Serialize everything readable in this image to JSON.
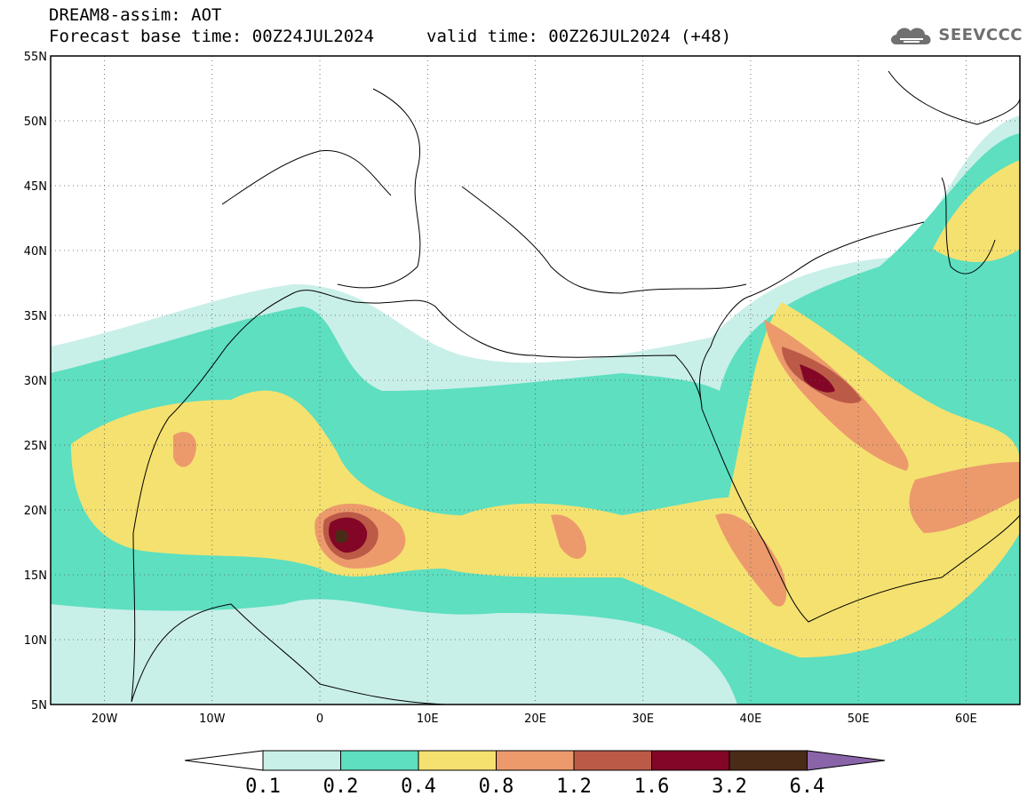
{
  "header": {
    "line1": "DREAM8-assim: AOT",
    "line2": "Forecast base time: 00Z24JUL2024",
    "line3": "valid time: 00Z26JUL2024 (+48)"
  },
  "logo": {
    "text": "SEEVCCC",
    "icon": "cloud-icon"
  },
  "map": {
    "lat_ticks": [
      "55N",
      "50N",
      "45N",
      "40N",
      "35N",
      "30N",
      "25N",
      "20N",
      "15N",
      "10N",
      "5N"
    ],
    "lon_ticks": [
      "20W",
      "10W",
      "0",
      "10E",
      "20E",
      "30E",
      "40E",
      "50E",
      "60E"
    ],
    "lat_range": [
      5,
      55
    ],
    "lon_range": [
      -25,
      65
    ],
    "gridlines": true
  },
  "colorbar": {
    "levels": [
      "0.1",
      "0.2",
      "0.4",
      "0.8",
      "1.2",
      "1.6",
      "3.2",
      "6.4"
    ],
    "colors": [
      "#ffffff",
      "#c9efe9",
      "#5ddfc0",
      "#f5e170",
      "#ec9a6c",
      "#bc5a48",
      "#840627",
      "#4a2b18",
      "#8a64a8"
    ]
  }
}
